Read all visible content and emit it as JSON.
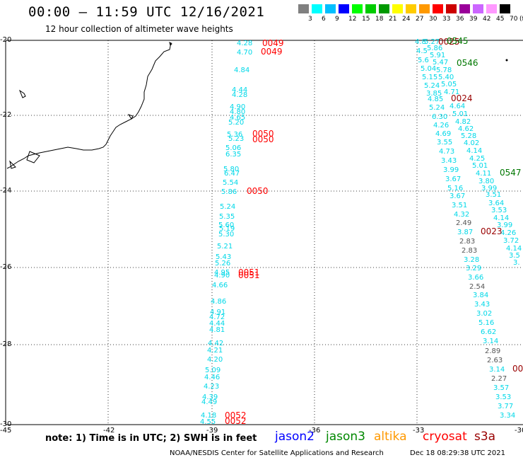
{
  "title": "00:00 – 11:59 UTC 12/16/2021",
  "subtitle": "12 hour collection of altimeter wave heights",
  "legend": {
    "colors": [
      "#808080",
      "#00ffff",
      "#00bfff",
      "#0000ff",
      "#00ff00",
      "#00cc00",
      "#009900",
      "#ffff00",
      "#ffcc00",
      "#ff9900",
      "#ff0000",
      "#cc0000",
      "#990099",
      "#cc66ff",
      "#ff99ff",
      "#000000"
    ],
    "labels": [
      "3",
      "6",
      "9",
      "12",
      "15",
      "18",
      "21",
      "24",
      "27",
      "30",
      "33",
      "36",
      "39",
      "42",
      "45",
      "70",
      "(ft)"
    ]
  },
  "axes": {
    "lat_labels": [
      "-20",
      "-22",
      "-24",
      "-26",
      "-28",
      "-30"
    ],
    "lon_labels": [
      "-45",
      "-42",
      "-39",
      "-36",
      "-33",
      "-30"
    ]
  },
  "chart_data": {
    "type": "map",
    "lat_range": [
      -30,
      -20
    ],
    "lon_range": [
      -45,
      -30
    ],
    "swh_values_track1": [
      "4.28",
      "4.70",
      "4.84",
      "4.44",
      "4.28",
      "4.90",
      "4.80",
      "4.65",
      "5.20",
      "5.36",
      "5.23",
      "5.06",
      "6.35",
      "5.80",
      "6.47",
      "5.54",
      "5.86",
      "5.24",
      "5.35",
      "5.60",
      "5.19",
      "5.30",
      "5.21",
      "5.43",
      "5.26",
      "4.95",
      "4.90",
      "4.66",
      "4.86",
      "4.91",
      "4.72",
      "4.44",
      "4.81",
      "4.42",
      "4.21",
      "4.20",
      "5.09",
      "4.46",
      "4.23",
      "4.39",
      "4.49",
      "4.18",
      "4.55"
    ],
    "time_labels_track1": [
      "0049",
      "0049",
      "0050",
      "0050",
      "0050",
      "0051",
      "0051",
      "0052",
      "0052"
    ],
    "swh_values_track2": [
      "4.8",
      "4.5",
      "5.6",
      "5.04",
      "5.15",
      "5.24",
      "3.85",
      "4.85",
      "5.24",
      "6.30",
      "4.26",
      "4.69",
      "3.55",
      "4.73",
      "3.43",
      "3.99",
      "3.67",
      "5.16",
      "3.67",
      "3.51",
      "4.32",
      "2.49",
      "3.87",
      "2.83",
      "2.83",
      "3.28",
      "3.29",
      "3.66",
      "2.54",
      "3.84",
      "3.43",
      "3.02",
      "5.16",
      "6.62",
      "3.14",
      "2.89",
      "2.63",
      "3.14",
      "2.27",
      "3.57",
      "3.53",
      "3.77",
      "3.34"
    ],
    "swh_values_track3": [
      "5.27",
      "5.86",
      "5.91",
      "5.47",
      "5.78",
      "5.40",
      "5.05",
      "4.71",
      "4.64",
      "5.01",
      "4.82",
      "4.62",
      "5.28",
      "4.02",
      "4.14",
      "4.25",
      "5.01",
      "4.11",
      "3.80",
      "3.99",
      "3.51",
      "3.64",
      "3.53",
      "4.14",
      "3.99",
      "4.26",
      "3.72",
      "4.14",
      "3.5",
      "3."
    ],
    "time_labels_track2": [
      "0025",
      "0024",
      "0023",
      "00"
    ],
    "time_labels_track3": [
      "0545",
      "0546",
      "0547"
    ]
  },
  "footnote": "note:  1) Time is in UTC;  2) SWH is in feet",
  "missions": [
    {
      "name": "jason2",
      "color": "#0000ff"
    },
    {
      "name": "jason3",
      "color": "#008800"
    },
    {
      "name": "altika",
      "color": "#ff9900"
    },
    {
      "name": "cryosat",
      "color": "#ff0000"
    },
    {
      "name": "s3a",
      "color": "#990000"
    }
  ],
  "credit": "NOAA/NESDIS Center for Satellite Applications and Research",
  "credit_time": "Dec 18 08:29:38 UTC 2021"
}
